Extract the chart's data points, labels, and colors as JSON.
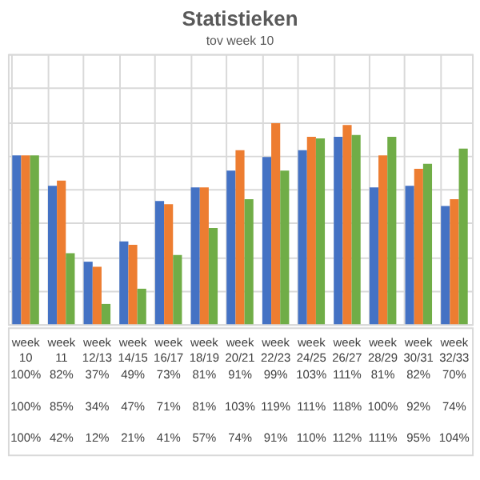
{
  "chart_data": {
    "type": "bar",
    "title": "Statistieken",
    "subtitle": "tov  week 10",
    "categories": [
      "week 10",
      "week 11",
      "week 12/13",
      "week 14/15",
      "week 16/17",
      "week 18/19",
      "week 20/21",
      "week 22/23",
      "week 24/25",
      "week 26/27",
      "week 28/29",
      "week 30/31",
      "week 32/33"
    ],
    "series": [
      {
        "color": "#4472c4",
        "values": [
          100,
          82,
          37,
          49,
          73,
          81,
          91,
          99,
          103,
          111,
          81,
          82,
          70
        ],
        "value_labels": [
          "100%",
          "82%",
          "37%",
          "49%",
          "73%",
          "81%",
          "91%",
          "99%",
          "103%",
          "111%",
          "81%",
          "82%",
          "70%"
        ]
      },
      {
        "color": "#ed7d31",
        "values": [
          100,
          85,
          34,
          47,
          71,
          81,
          103,
          119,
          111,
          118,
          100,
          92,
          74
        ],
        "value_labels": [
          "100%",
          "85%",
          "34%",
          "47%",
          "71%",
          "81%",
          "103%",
          "119%",
          "111%",
          "118%",
          "100%",
          "92%",
          "74%"
        ]
      },
      {
        "color": "#70ad47",
        "values": [
          100,
          42,
          12,
          21,
          41,
          57,
          74,
          91,
          110,
          112,
          111,
          95,
          104
        ],
        "value_labels": [
          "100%",
          "42%",
          "12%",
          "21%",
          "41%",
          "57%",
          "74%",
          "91%",
          "110%",
          "112%",
          "111%",
          "95%",
          "104%"
        ]
      }
    ],
    "ylim": [
      0,
      160
    ],
    "yticks": [
      {
        "value": 0,
        "label": null
      },
      {
        "value": 20,
        "label": null
      },
      {
        "value": 40,
        "label": null
      },
      {
        "value": 60,
        "label": null
      },
      {
        "value": 80,
        "label": null
      },
      {
        "value": 100,
        "label": null
      },
      {
        "value": 120,
        "label": null
      },
      {
        "value": 140,
        "label": null
      },
      {
        "value": 160,
        "label": null
      }
    ],
    "grid": true
  }
}
